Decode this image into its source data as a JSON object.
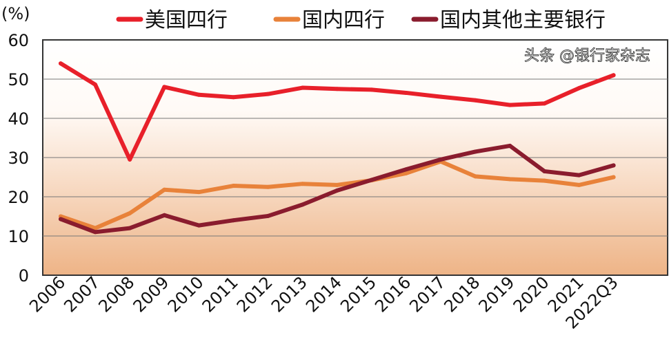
{
  "chart_data": {
    "type": "line",
    "ylabel": "(%)",
    "ylim": [
      0,
      60
    ],
    "yticks": [
      0,
      10,
      20,
      30,
      40,
      50,
      60
    ],
    "grid": true,
    "legend_placement": "top",
    "categories": [
      "2006",
      "2007",
      "2008",
      "2009",
      "2010",
      "2011",
      "2012",
      "2013",
      "2014",
      "2015",
      "2016",
      "2017",
      "2018",
      "2019",
      "2020",
      "2021",
      "2022Q3"
    ],
    "series": [
      {
        "name": "美国四行",
        "color": "#e8202a",
        "values": [
          54,
          48.6,
          29.5,
          48,
          46,
          45.4,
          46.2,
          47.8,
          47.5,
          47.3,
          46.5,
          45.5,
          44.6,
          43.4,
          43.8,
          47.7,
          51
        ]
      },
      {
        "name": "国内四行",
        "color": "#e8823a",
        "values": [
          15,
          12,
          15.8,
          21.8,
          21.2,
          22.8,
          22.5,
          23.3,
          23,
          24.2,
          26,
          29,
          25.2,
          24.5,
          24.1,
          23,
          25
        ]
      },
      {
        "name": "国内其他主要银行",
        "color": "#8a1c2e",
        "values": [
          14.3,
          11,
          12,
          15.3,
          12.7,
          14,
          15.1,
          18,
          21.6,
          24.3,
          27,
          29.5,
          31.5,
          33,
          26.5,
          25.5,
          28
        ]
      }
    ]
  },
  "watermark": "头条 @银行家杂志"
}
